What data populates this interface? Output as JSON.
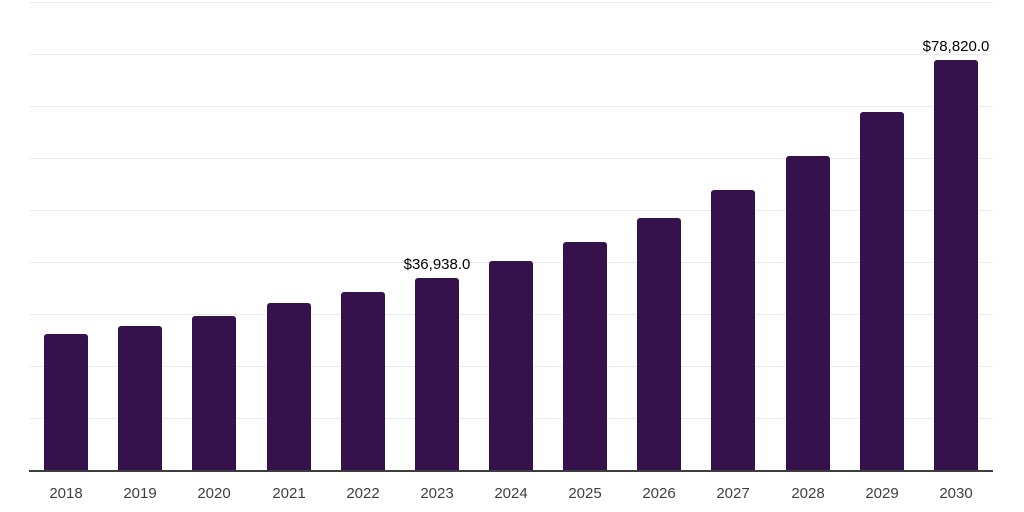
{
  "chart_data": {
    "type": "bar",
    "categories": [
      "2018",
      "2019",
      "2020",
      "2021",
      "2022",
      "2023",
      "2024",
      "2025",
      "2026",
      "2027",
      "2028",
      "2029",
      "2030"
    ],
    "values": [
      26150,
      27700,
      29600,
      32100,
      34200,
      36938,
      40200,
      43850,
      48450,
      53850,
      60400,
      68850,
      78820
    ],
    "value_labels": {
      "2023": "$36,938.0",
      "2030": "$78,820.0"
    },
    "ylim": [
      0,
      90000
    ],
    "gridline_step": 10000,
    "grid": "horizontal",
    "legend": "none",
    "y_axis_tick_labels": "none",
    "colors": {
      "bar": "#35124B",
      "gridline": "#ECECEC",
      "axis_line": "#3D3D3D",
      "tick_label": "#3F3F3F",
      "value_label": "#000000",
      "background": "#FFFFFF"
    }
  }
}
